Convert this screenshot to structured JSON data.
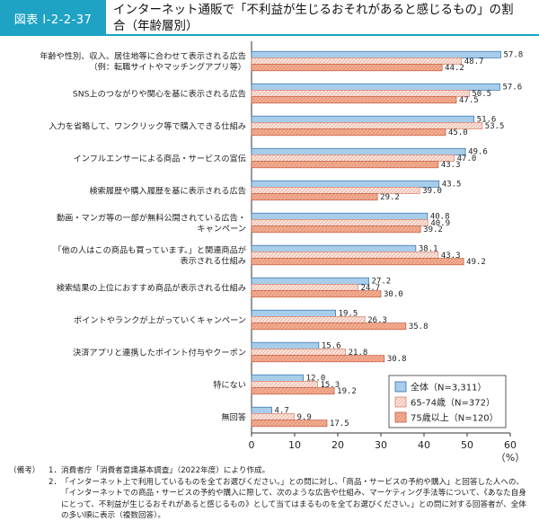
{
  "header": {
    "figure_number": "図表 I-2-2-37",
    "title_line1": "インターネット通販で「不利益が生じるおそれがあると感じるもの」の割",
    "title_line2": "合（年齢層別）"
  },
  "chart_data": {
    "type": "bar",
    "orientation": "horizontal",
    "categories": [
      [
        "年齢や性別、収入、居住地等に合わせて表示される広告",
        "（例：転職サイトやマッチングアプリ等）"
      ],
      [
        "SNS上のつながりや関心を基に表示される広告"
      ],
      [
        "入力を省略して、ワンクリック等で購入できる仕組み"
      ],
      [
        "インフルエンサーによる商品・サービスの宣伝"
      ],
      [
        "検索履歴や購入履歴を基に表示される広告"
      ],
      [
        "動画・マンガ等の一部が無料公開されている広告・",
        "キャンペーン"
      ],
      [
        "「他の人はこの商品も買っています。」と関連商品が",
        "表示される仕組み"
      ],
      [
        "検索結果の上位におすすめ商品が表示される仕組み"
      ],
      [
        "ポイントやランクが上がっていくキャンペーン"
      ],
      [
        "決済アプリと連携したポイント付与やクーポン"
      ],
      [
        "特にない"
      ],
      [
        "無回答"
      ]
    ],
    "series": [
      {
        "name": "全体（N=3,311）",
        "color": "#a8cdea",
        "stroke": "#2f6ea8",
        "values": [
          57.8,
          57.6,
          51.6,
          49.6,
          43.5,
          40.8,
          38.1,
          27.2,
          19.5,
          15.6,
          12.0,
          4.7
        ]
      },
      {
        "name": "65-74歳（N=372）",
        "color": "#fbe4dc",
        "stroke": "#d8826b",
        "values": [
          48.7,
          50.5,
          53.5,
          47.0,
          39.0,
          40.9,
          43.3,
          24.7,
          26.3,
          21.8,
          15.3,
          9.9
        ]
      },
      {
        "name": "75歳以上（N=120）",
        "color": "#ec9a7b",
        "stroke": "#c45a3e",
        "values": [
          44.2,
          47.5,
          45.0,
          43.3,
          29.2,
          39.2,
          49.2,
          30.0,
          35.8,
          30.8,
          19.2,
          17.5
        ]
      }
    ],
    "xlim": [
      0,
      60
    ],
    "xticks": [
      "0",
      "10",
      "20",
      "30",
      "40",
      "50",
      "60"
    ],
    "xlabel": "（%）",
    "legend_position": "bottom-right",
    "grid": false
  },
  "notes": {
    "label": "（備考）",
    "items": [
      {
        "num": "1．",
        "text": "消費者庁「消費者意識基本調査」（2022年度）により作成。"
      },
      {
        "num": "2．",
        "text": "「インターネット上で利用しているものを全てお選びください。」との問に対し、「商品・サービスの予約や購入」と回答した人への、「インターネットでの商品・サービスの予約や購入に際して、次のような広告や仕組み、マーケティング手法等について、《あなた自身にとって、不利益が生じるおそれがあると感じるもの》として当てはまるものを全てお選びください。」との問に対する回答者が、全体の多い順に表示（複数回答）。"
      }
    ]
  }
}
